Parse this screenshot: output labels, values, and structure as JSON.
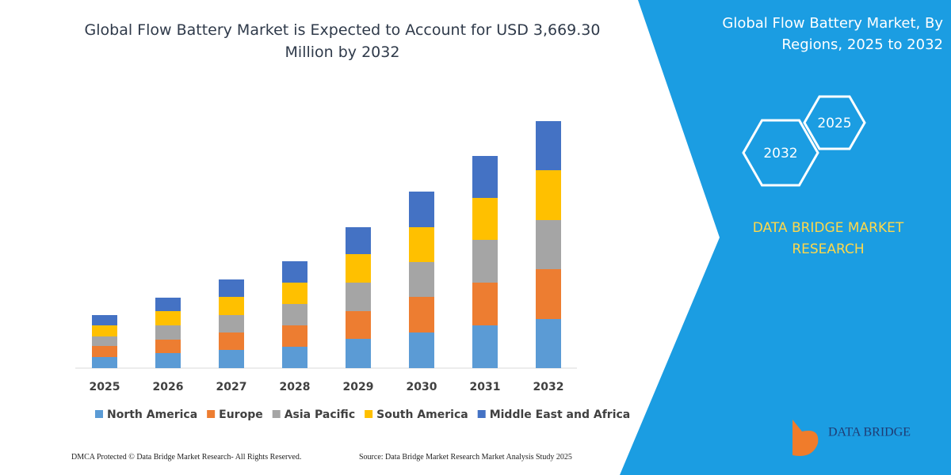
{
  "chart_data": {
    "type": "bar",
    "stacked": true,
    "title": "Global Flow Battery Market is Expected to Account for USD 3,669.30 Million by 2032",
    "categories": [
      "2025",
      "2026",
      "2027",
      "2028",
      "2029",
      "2030",
      "2031",
      "2032"
    ],
    "series": [
      {
        "name": "North America",
        "color": "#5b9bd5",
        "values": [
          14,
          19,
          23,
          27,
          37,
          45,
          54,
          62
        ]
      },
      {
        "name": "Europe",
        "color": "#ed7d31",
        "values": [
          14,
          17,
          22,
          27,
          35,
          45,
          54,
          63
        ]
      },
      {
        "name": "Asia Pacific",
        "color": "#a5a5a5",
        "values": [
          12,
          18,
          22,
          27,
          36,
          44,
          54,
          62
        ]
      },
      {
        "name": "South America",
        "color": "#ffc000",
        "values": [
          14,
          18,
          23,
          27,
          36,
          44,
          53,
          63
        ]
      },
      {
        "name": "Middle East and Africa",
        "color": "#4472c4",
        "values": [
          13,
          17,
          22,
          27,
          34,
          45,
          53,
          62
        ]
      }
    ]
  },
  "panel": {
    "title": "Global Flow Battery Market, By Regions, 2025 to 2032",
    "hex_small": "2025",
    "hex_large": "2032",
    "brand": "DATA BRIDGE MARKET RESEARCH",
    "logo": "DATA BRIDGE"
  },
  "footer": {
    "left": "DMCA Protected © Data Bridge Market Research- All Rights Reserved.",
    "right": "Source: Data Bridge Market Research Market Analysis Study 2025"
  }
}
